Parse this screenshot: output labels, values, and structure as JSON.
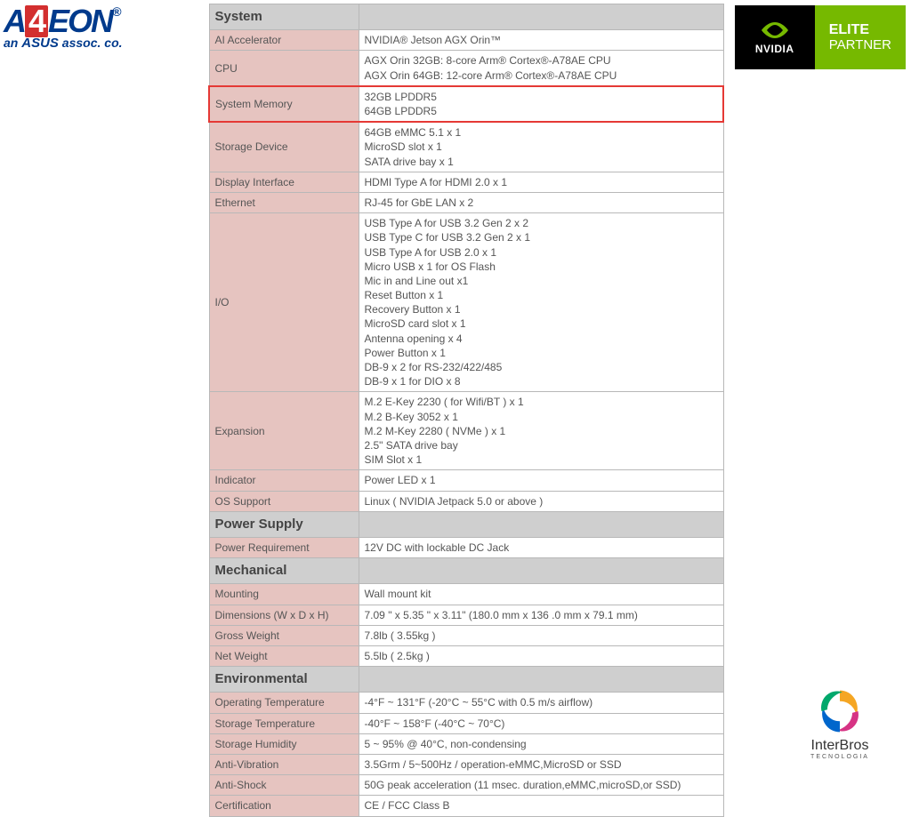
{
  "logos": {
    "aaeon": {
      "brand_prefix": "A",
      "brand_box": "4",
      "brand_suffix": "EON",
      "tagline_prefix": "an ",
      "tagline_asus": "ASUS",
      "tagline_suffix": " assoc. co."
    },
    "nvidia": {
      "name": "NVIDIA",
      "elite": "ELITE",
      "partner": "PARTNER"
    },
    "interbros": {
      "name": "InterBros",
      "sub": "TECNOLOGIA"
    }
  },
  "sections": [
    {
      "header": "System",
      "rows": [
        {
          "label": "AI Accelerator",
          "value": "NVIDIA® Jetson AGX Orin™"
        },
        {
          "label": "CPU",
          "value": "AGX Orin 32GB: 8-core Arm® Cortex®-A78AE CPU\nAGX Orin 64GB: 12-core Arm® Cortex®-A78AE CPU"
        },
        {
          "label": "System Memory",
          "value": "32GB LPDDR5\n64GB LPDDR5",
          "highlight": true
        },
        {
          "label": "Storage Device",
          "value": "64GB eMMC 5.1 x 1\nMicroSD slot x 1\nSATA drive bay x 1"
        },
        {
          "label": "Display Interface",
          "value": "HDMI Type A for HDMI 2.0 x 1"
        },
        {
          "label": "Ethernet",
          "value": "RJ-45 for GbE LAN x 2"
        },
        {
          "label": "I/O",
          "value": "USB Type A for USB 3.2 Gen 2 x 2\nUSB Type C for USB 3.2 Gen 2 x 1\nUSB Type A for USB 2.0 x 1\nMicro USB x 1 for OS Flash\nMic in and Line out x1\nReset Button x 1\nRecovery Button x 1\nMicroSD card slot x 1\nAntenna opening x 4\nPower Button x 1\nDB-9 x 2 for RS-232/422/485\nDB-9 x 1 for DIO x 8"
        },
        {
          "label": "Expansion",
          "value": "M.2 E-Key 2230 ( for Wifi/BT ) x 1\nM.2 B-Key 3052 x 1\nM.2 M-Key 2280 ( NVMe ) x 1\n2.5\" SATA drive bay\nSIM Slot x 1"
        },
        {
          "label": "Indicator",
          "value": "Power LED x 1"
        },
        {
          "label": "OS Support",
          "value": "Linux ( NVIDIA Jetpack 5.0 or above )"
        }
      ]
    },
    {
      "header": "Power Supply",
      "rows": [
        {
          "label": "Power Requirement",
          "value": "12V DC with lockable DC Jack"
        }
      ]
    },
    {
      "header": "Mechanical",
      "rows": [
        {
          "label": "Mounting",
          "value": "Wall mount kit"
        },
        {
          "label": "Dimensions (W x D x H)",
          "value": "7.09 \" x 5.35 \" x 3.11\" (180.0 mm x 136 .0 mm x 79.1 mm)"
        },
        {
          "label": "Gross Weight",
          "value": "7.8lb ( 3.55kg )"
        },
        {
          "label": "Net Weight",
          "value": "5.5lb ( 2.5kg )"
        }
      ]
    },
    {
      "header": "Environmental",
      "rows": [
        {
          "label": "Operating Temperature",
          "value": "-4°F ~ 131°F (-20°C ~ 55°C with 0.5 m/s airflow)"
        },
        {
          "label": "Storage Temperature",
          "value": "-40°F ~ 158°F (-40°C ~ 70°C)"
        },
        {
          "label": "Storage Humidity",
          "value": "5 ~ 95% @ 40°C, non-condensing"
        },
        {
          "label": "Anti-Vibration",
          "value": "3.5Grm / 5~500Hz / operation-eMMC,MicroSD or SSD"
        },
        {
          "label": "Anti-Shock",
          "value": "50G peak acceleration (11 msec. duration,eMMC,microSD,or SSD)"
        },
        {
          "label": "Certification",
          "value": "CE / FCC Class B"
        }
      ]
    }
  ]
}
